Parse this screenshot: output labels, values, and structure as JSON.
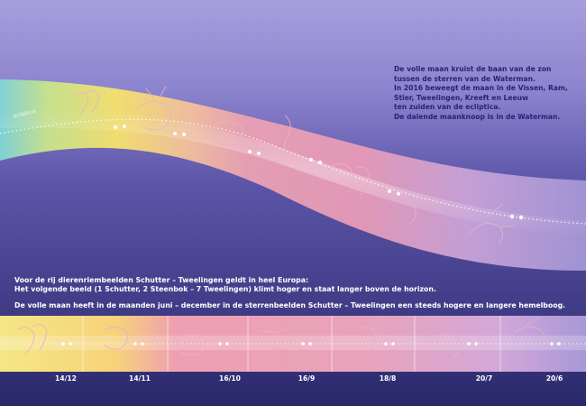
{
  "intro_lines": [
    "De volle maan kruist de baan van de zon",
    "tussen de sterren van de Waterman.",
    "In 2016 beweegt de maan in de Vissen, Ram,",
    "Stier, Tweelingen, Kreeft en Leeuw",
    "ten zuiden van de ecliptica.",
    "De dalende maanknoop is in de Waterman."
  ],
  "ecliptic_label": "ecliptica",
  "notes": {
    "line1": "Voor de rij dierenriembeelden Schutter – Tweelingen geldt in heel Europa:",
    "line2": "Het volgende beeld (1 Schutter, 2 Steenbok – 7 Tweelingen) klimt hoger en staat langer boven de horizon.",
    "line3": "De volle maan heeft in de maanden juni – december in de sterrenbeelden Schutter – Tweelingen een steeds hogere en langere hemelboog."
  },
  "strip_dates": [
    "14/12",
    "14/11",
    "16/10",
    "16/9",
    "18/8",
    "20/7",
    "20/6"
  ],
  "constellations": [
    "Tweelingen",
    "Stier",
    "Ram",
    "Vissen",
    "Waterman",
    "Steenbok",
    "Schutter"
  ],
  "colors": {
    "bg_top": "#9a8fd6",
    "bg_bottom": "#2c2a6e",
    "yellow": "#f5e36a",
    "pink": "#e79ab0",
    "violet": "#b59ad6",
    "text_dark": "#2a2270",
    "text_light": "#ffffff"
  }
}
